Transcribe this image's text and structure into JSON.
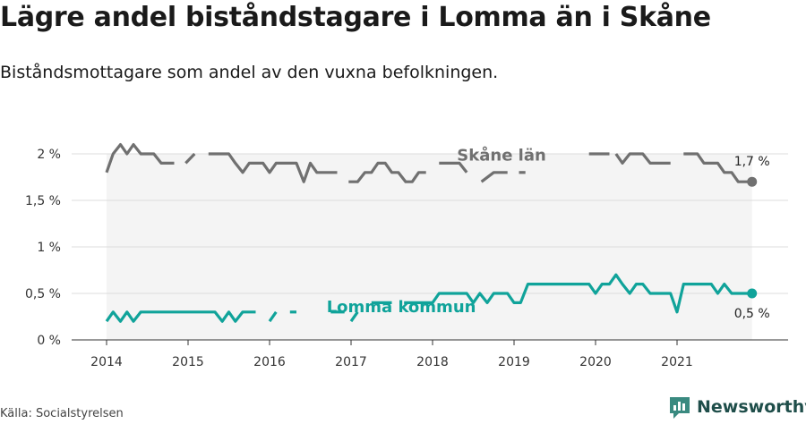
{
  "title": "Lägre andel biståndstagare i Lomma än i Skåne",
  "subtitle": "Biståndsmottagare som andel av den vuxna befolkningen.",
  "source": "Källa: Socialstyrelsen",
  "brand": {
    "name": "Newsworthy",
    "logo_icon": "bar-chart-logo-icon",
    "color": "#3a8a80"
  },
  "colors": {
    "skane": "#707070",
    "lomma": "#10a39a",
    "grid": "#dddddd",
    "area": "#f4f4f4"
  },
  "chart_data": {
    "type": "line",
    "title": "Lägre andel biståndstagare i Lomma än i Skåne",
    "subtitle": "Biståndsmottagare som andel av den vuxna befolkningen.",
    "xlabel": "",
    "ylabel": "",
    "x_ticks": [
      "2014",
      "2015",
      "2016",
      "2017",
      "2018",
      "2019",
      "2020",
      "2021"
    ],
    "y_ticks": [
      "0 %",
      "0,5 %",
      "1 %",
      "1,5 %",
      "2 %"
    ],
    "y_tick_values": [
      0,
      0.5,
      1,
      1.5,
      2
    ],
    "xlim": [
      2014.0,
      2022.0
    ],
    "ylim": [
      0,
      2.1
    ],
    "grid": true,
    "series": [
      {
        "name": "Skåne län",
        "end_label": "1,7 %",
        "segments": [
          [
            [
              2014.0,
              1.8
            ],
            [
              2014.08,
              2.0
            ],
            [
              2014.17,
              2.1
            ],
            [
              2014.25,
              2.0
            ],
            [
              2014.33,
              2.1
            ],
            [
              2014.42,
              2.0
            ],
            [
              2014.5,
              2.0
            ],
            [
              2014.58,
              2.0
            ],
            [
              2014.67,
              1.9
            ],
            [
              2014.75,
              1.9
            ],
            [
              2014.83,
              1.9
            ]
          ],
          [
            [
              2014.97,
              1.9
            ],
            [
              2015.08,
              2.0
            ]
          ],
          [
            [
              2015.25,
              2.0
            ],
            [
              2015.33,
              2.0
            ],
            [
              2015.42,
              2.0
            ],
            [
              2015.5,
              2.0
            ],
            [
              2015.58,
              1.9
            ],
            [
              2015.67,
              1.8
            ],
            [
              2015.75,
              1.9
            ],
            [
              2015.83,
              1.9
            ],
            [
              2015.92,
              1.9
            ],
            [
              2016.0,
              1.8
            ],
            [
              2016.08,
              1.9
            ],
            [
              2016.17,
              1.9
            ],
            [
              2016.25,
              1.9
            ],
            [
              2016.33,
              1.9
            ],
            [
              2016.42,
              1.7
            ],
            [
              2016.5,
              1.9
            ],
            [
              2016.58,
              1.8
            ],
            [
              2016.67,
              1.8
            ],
            [
              2016.75,
              1.8
            ],
            [
              2016.83,
              1.8
            ]
          ],
          [
            [
              2016.97,
              1.7
            ],
            [
              2017.08,
              1.7
            ],
            [
              2017.17,
              1.8
            ],
            [
              2017.25,
              1.8
            ],
            [
              2017.33,
              1.9
            ],
            [
              2017.42,
              1.9
            ],
            [
              2017.5,
              1.8
            ],
            [
              2017.58,
              1.8
            ],
            [
              2017.67,
              1.7
            ],
            [
              2017.75,
              1.7
            ],
            [
              2017.83,
              1.8
            ],
            [
              2017.92,
              1.8
            ]
          ],
          [
            [
              2018.08,
              1.9
            ],
            [
              2018.17,
              1.9
            ],
            [
              2018.25,
              1.9
            ],
            [
              2018.33,
              1.9
            ],
            [
              2018.42,
              1.8
            ]
          ],
          [
            [
              2018.6,
              1.7
            ],
            [
              2018.75,
              1.8
            ],
            [
              2018.83,
              1.8
            ],
            [
              2018.92,
              1.8
            ]
          ],
          [
            [
              2019.1,
              1.8
            ]
          ],
          [
            [
              2019.92,
              2.0
            ],
            [
              2020.08,
              2.0
            ],
            [
              2020.17,
              2.0
            ]
          ],
          [
            [
              2020.25,
              2.0
            ],
            [
              2020.33,
              1.9
            ],
            [
              2020.42,
              2.0
            ],
            [
              2020.5,
              2.0
            ],
            [
              2020.58,
              2.0
            ],
            [
              2020.67,
              1.9
            ],
            [
              2020.75,
              1.9
            ],
            [
              2020.83,
              1.9
            ],
            [
              2020.92,
              1.9
            ]
          ],
          [
            [
              2021.08,
              2.0
            ],
            [
              2021.17,
              2.0
            ],
            [
              2021.25,
              2.0
            ],
            [
              2021.33,
              1.9
            ],
            [
              2021.42,
              1.9
            ],
            [
              2021.5,
              1.9
            ],
            [
              2021.58,
              1.8
            ],
            [
              2021.67,
              1.8
            ],
            [
              2021.75,
              1.7
            ],
            [
              2021.83,
              1.7
            ],
            [
              2021.92,
              1.7
            ]
          ]
        ]
      },
      {
        "name": "Lomma kommun",
        "end_label": "0,5 %",
        "segments": [
          [
            [
              2014.0,
              0.2
            ],
            [
              2014.08,
              0.3
            ],
            [
              2014.17,
              0.2
            ],
            [
              2014.25,
              0.3
            ],
            [
              2014.33,
              0.2
            ],
            [
              2014.42,
              0.3
            ],
            [
              2014.5,
              0.3
            ],
            [
              2014.58,
              0.3
            ],
            [
              2014.67,
              0.3
            ],
            [
              2014.75,
              0.3
            ],
            [
              2014.83,
              0.3
            ],
            [
              2014.92,
              0.3
            ],
            [
              2015.0,
              0.3
            ],
            [
              2015.08,
              0.3
            ],
            [
              2015.17,
              0.3
            ],
            [
              2015.25,
              0.3
            ],
            [
              2015.33,
              0.3
            ],
            [
              2015.42,
              0.2
            ],
            [
              2015.5,
              0.3
            ],
            [
              2015.58,
              0.2
            ],
            [
              2015.67,
              0.3
            ],
            [
              2015.75,
              0.3
            ],
            [
              2015.83,
              0.3
            ]
          ],
          [
            [
              2016.0,
              0.2
            ],
            [
              2016.08,
              0.3
            ]
          ],
          [
            [
              2016.25,
              0.3
            ],
            [
              2016.33,
              0.3
            ]
          ],
          [
            [
              2016.75,
              0.3
            ],
            [
              2016.92,
              0.3
            ]
          ],
          [
            [
              2017.0,
              0.2
            ],
            [
              2017.08,
              0.3
            ]
          ],
          [
            [
              2017.25,
              0.4
            ],
            [
              2017.5,
              0.4
            ]
          ],
          [
            [
              2017.65,
              0.4
            ],
            [
              2017.75,
              0.4
            ],
            [
              2017.83,
              0.4
            ],
            [
              2017.92,
              0.4
            ],
            [
              2018.0,
              0.4
            ],
            [
              2018.08,
              0.5
            ],
            [
              2018.17,
              0.5
            ],
            [
              2018.25,
              0.5
            ],
            [
              2018.33,
              0.5
            ],
            [
              2018.42,
              0.5
            ],
            [
              2018.5,
              0.4
            ],
            [
              2018.58,
              0.5
            ],
            [
              2018.67,
              0.4
            ],
            [
              2018.75,
              0.5
            ],
            [
              2018.83,
              0.5
            ],
            [
              2018.92,
              0.5
            ],
            [
              2019.0,
              0.4
            ],
            [
              2019.08,
              0.4
            ],
            [
              2019.17,
              0.6
            ],
            [
              2019.25,
              0.6
            ],
            [
              2019.33,
              0.6
            ],
            [
              2019.42,
              0.6
            ],
            [
              2019.5,
              0.6
            ],
            [
              2019.58,
              0.6
            ],
            [
              2019.67,
              0.6
            ],
            [
              2019.75,
              0.6
            ],
            [
              2019.83,
              0.6
            ],
            [
              2019.92,
              0.6
            ],
            [
              2020.0,
              0.5
            ],
            [
              2020.08,
              0.6
            ],
            [
              2020.17,
              0.6
            ],
            [
              2020.25,
              0.7
            ],
            [
              2020.33,
              0.6
            ],
            [
              2020.42,
              0.5
            ],
            [
              2020.5,
              0.6
            ],
            [
              2020.58,
              0.6
            ],
            [
              2020.67,
              0.5
            ],
            [
              2020.75,
              0.5
            ],
            [
              2020.83,
              0.5
            ],
            [
              2020.92,
              0.5
            ],
            [
              2021.0,
              0.3
            ],
            [
              2021.08,
              0.6
            ],
            [
              2021.17,
              0.6
            ],
            [
              2021.25,
              0.6
            ],
            [
              2021.33,
              0.6
            ],
            [
              2021.42,
              0.6
            ],
            [
              2021.5,
              0.5
            ],
            [
              2021.58,
              0.6
            ],
            [
              2021.67,
              0.5
            ],
            [
              2021.75,
              0.5
            ],
            [
              2021.83,
              0.5
            ],
            [
              2021.92,
              0.5
            ]
          ]
        ]
      }
    ],
    "annotations": [
      {
        "text": "Skåne län",
        "series": "Skåne län",
        "x": 2018.3,
        "y": 1.93
      },
      {
        "text": "Lomma kommun",
        "series": "Lomma kommun",
        "x": 2016.7,
        "y": 0.3
      }
    ]
  }
}
